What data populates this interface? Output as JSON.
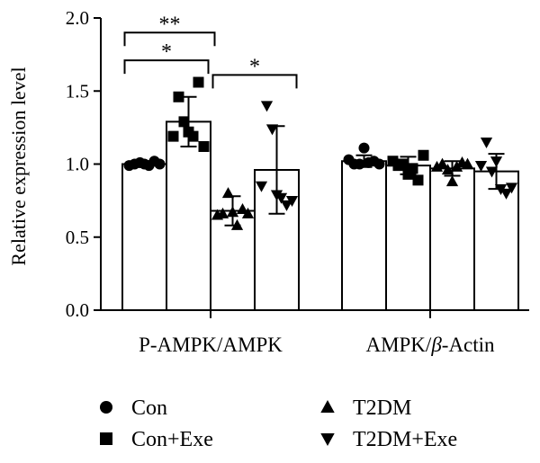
{
  "chart_data": {
    "type": "bar",
    "ylabel": "Relative expression level",
    "ylim": [
      0.0,
      2.0
    ],
    "yticks": [
      "0.0",
      "0.5",
      "1.0",
      "1.5",
      "2.0"
    ],
    "categories": [
      "P-AMPK/AMPK",
      "AMPK/β-Actin"
    ],
    "category_label_parts": [
      {
        "pre": "P-AMPK/AMPK",
        "italic": "",
        "post": ""
      },
      {
        "pre": "AMPK/",
        "italic": "β",
        "post": "-Actin"
      }
    ],
    "series": [
      {
        "name": "Con",
        "marker": "circle",
        "values": [
          1.0,
          1.02
        ],
        "sd": [
          0.02,
          0.04
        ],
        "points": [
          [
            0.99,
            1.0,
            1.01,
            1.0,
            0.99,
            1.02,
            1.0
          ],
          [
            1.03,
            1.0,
            1.0,
            1.11,
            1.01,
            1.02,
            1.0
          ]
        ]
      },
      {
        "name": "Con+Exe",
        "marker": "square",
        "values": [
          1.29,
          0.99
        ],
        "sd": [
          0.17,
          0.06
        ],
        "points": [
          [
            1.19,
            1.46,
            1.29,
            1.22,
            1.19,
            1.56,
            1.12
          ],
          [
            1.02,
            0.99,
            1.0,
            0.93,
            0.97,
            0.89,
            1.06
          ]
        ]
      },
      {
        "name": "T2DM",
        "marker": "triangle-up",
        "values": [
          0.68,
          0.97
        ],
        "sd": [
          0.1,
          0.05
        ],
        "points": [
          [
            0.65,
            0.66,
            0.8,
            0.67,
            0.58,
            0.69,
            0.66
          ],
          [
            0.98,
            1.0,
            0.96,
            0.88,
            0.98,
            1.01,
            1.0
          ]
        ]
      },
      {
        "name": "T2DM+Exe",
        "marker": "triangle-down",
        "values": [
          0.96,
          0.95
        ],
        "sd": [
          0.3,
          0.12
        ],
        "points": [
          [
            0.85,
            1.4,
            1.24,
            0.79,
            0.77,
            0.72,
            0.75
          ],
          [
            0.99,
            1.15,
            0.95,
            1.02,
            0.83,
            0.8,
            0.84
          ]
        ]
      }
    ],
    "significance": [
      {
        "group": 0,
        "from": 0,
        "to": 1,
        "label": "*",
        "y": 1.71
      },
      {
        "group": 0,
        "from": 0,
        "to": 2,
        "label": "**",
        "y": 1.9
      },
      {
        "group": 0,
        "from": 2,
        "to": 3,
        "label": "*",
        "y": 1.61
      }
    ],
    "grid": false,
    "legend_position": "bottom"
  }
}
